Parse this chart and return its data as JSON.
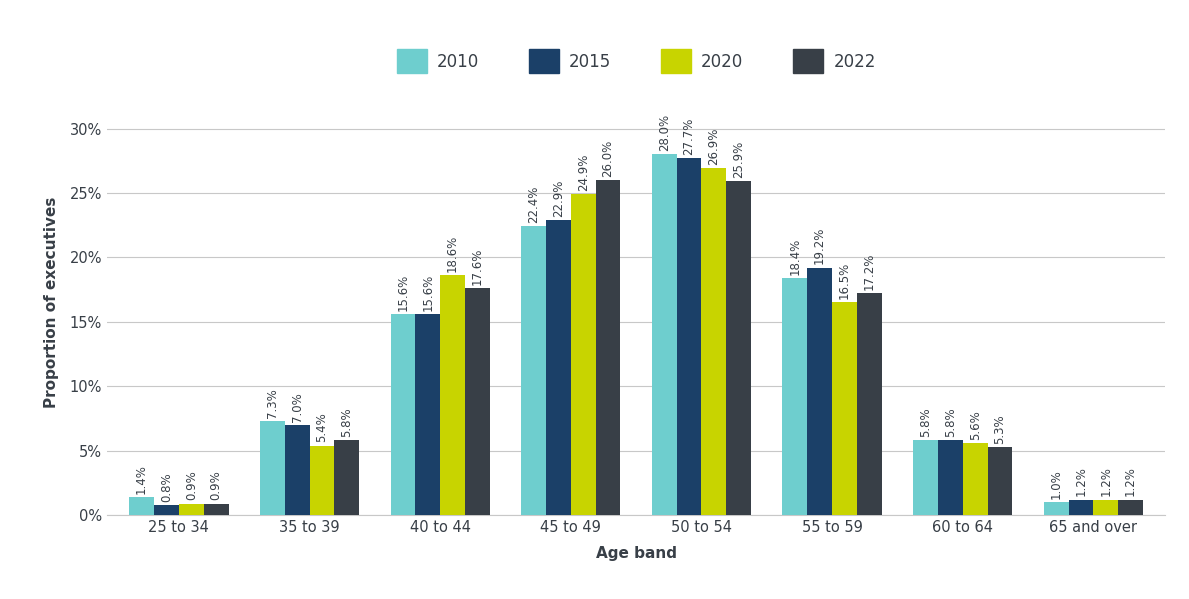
{
  "categories": [
    "25 to 34",
    "35 to 39",
    "40 to 44",
    "45 to 49",
    "50 to 54",
    "55 to 59",
    "60 to 64",
    "65 and over"
  ],
  "years": [
    "2010",
    "2015",
    "2020",
    "2022"
  ],
  "colors": [
    "#6ecece",
    "#1b4068",
    "#c8d400",
    "#383f47"
  ],
  "values": {
    "2010": [
      1.4,
      7.3,
      15.6,
      22.4,
      28.0,
      18.4,
      5.8,
      1.0
    ],
    "2015": [
      0.8,
      7.0,
      15.6,
      22.9,
      27.7,
      19.2,
      5.8,
      1.2
    ],
    "2020": [
      0.9,
      5.4,
      18.6,
      24.9,
      26.9,
      16.5,
      5.6,
      1.2
    ],
    "2022": [
      0.9,
      5.8,
      17.6,
      26.0,
      25.9,
      17.2,
      5.3,
      1.2
    ]
  },
  "ylabel": "Proportion of executives",
  "xlabel": "Age band",
  "ylim": [
    0,
    33
  ],
  "yticks": [
    0,
    5,
    10,
    15,
    20,
    25,
    30
  ],
  "ytick_labels": [
    "0%",
    "5%",
    "10%",
    "15%",
    "20%",
    "25%",
    "30%"
  ],
  "bar_width": 0.19,
  "label_fontsize": 11,
  "tick_fontsize": 10.5,
  "legend_fontsize": 12,
  "annot_fontsize": 8.5,
  "background_color": "#ffffff",
  "grid_color": "#c8c8c8",
  "text_color": "#383f47"
}
